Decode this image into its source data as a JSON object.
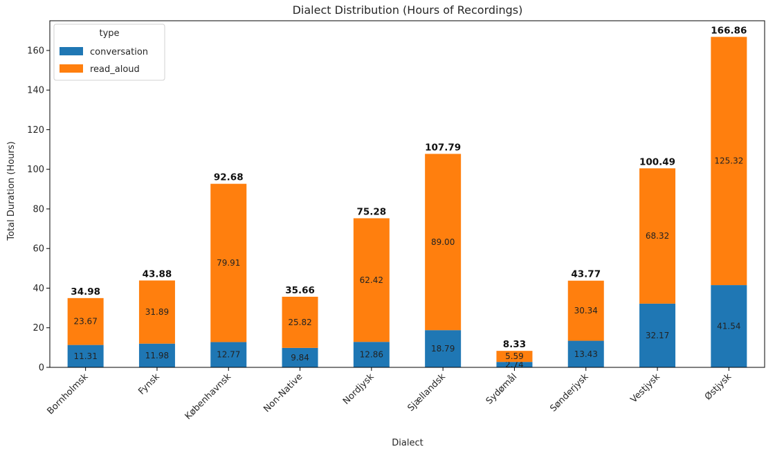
{
  "chart_data": {
    "type": "bar",
    "stacked": true,
    "title": "Dialect Distribution (Hours of Recordings)",
    "xlabel": "Dialect",
    "ylabel": "Total Duration (Hours)",
    "ylim": [
      0,
      175
    ],
    "yticks": [
      0,
      20,
      40,
      60,
      80,
      100,
      120,
      140,
      160
    ],
    "grid": false,
    "legend": {
      "title": "type",
      "placement": "top-left"
    },
    "categories": [
      "Bornholmsk",
      "Fynsk",
      "Københavnsk",
      "Non-Native",
      "Nordjysk",
      "Sjællandsk",
      "Sydømål",
      "Sønderjysk",
      "Vestjysk",
      "Østjysk"
    ],
    "series": [
      {
        "name": "conversation",
        "color": "#1f77b4",
        "values": [
          11.31,
          11.98,
          12.77,
          9.84,
          12.86,
          18.79,
          2.74,
          13.43,
          32.17,
          41.54
        ],
        "labels": [
          "11.31",
          "11.98",
          "12.77",
          "9.84",
          "12.86",
          "18.79",
          "2.74",
          "13.43",
          "32.17",
          "41.54"
        ]
      },
      {
        "name": "read_aloud",
        "color": "#ff7f0e",
        "values": [
          23.67,
          31.89,
          79.91,
          25.82,
          62.42,
          89.0,
          5.59,
          30.34,
          68.32,
          125.32
        ],
        "labels": [
          "23.67",
          "31.89",
          "79.91",
          "25.82",
          "62.42",
          "89.00",
          "5.59",
          "30.34",
          "68.32",
          "125.32"
        ]
      }
    ],
    "totals": [
      "34.98",
      "43.88",
      "92.68",
      "35.66",
      "75.28",
      "107.79",
      "8.33",
      "43.77",
      "100.49",
      "166.86"
    ]
  }
}
